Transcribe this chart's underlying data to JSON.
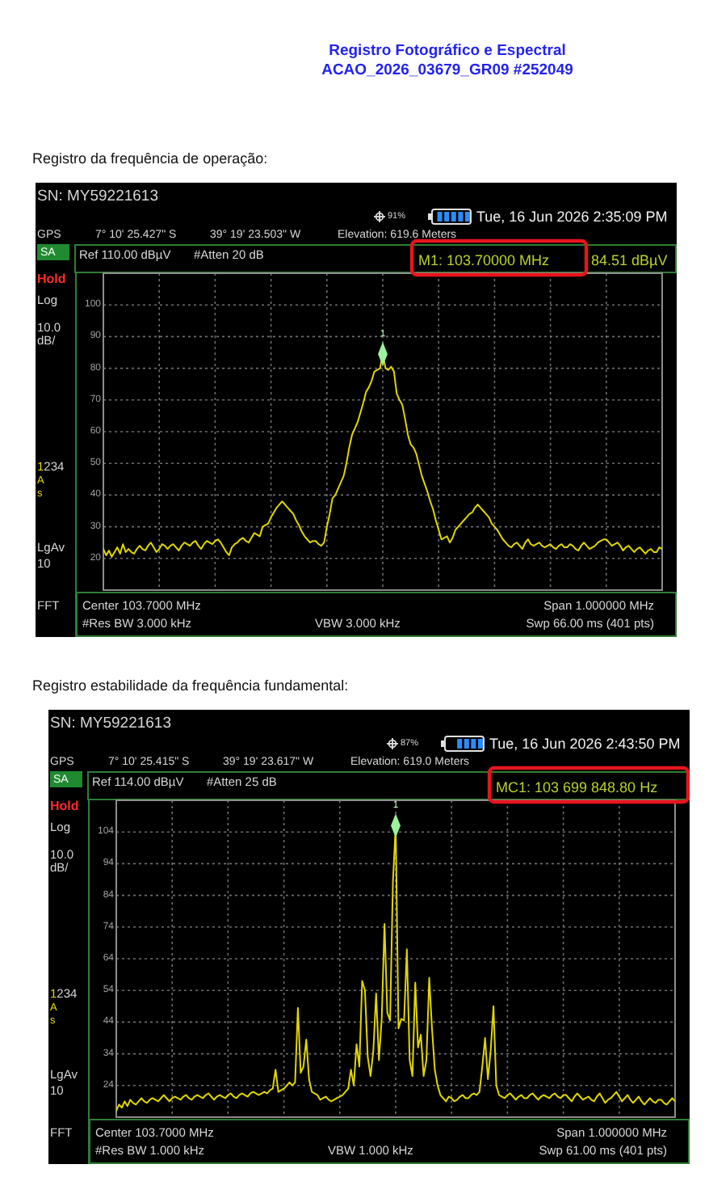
{
  "chart_data": [
    {
      "type": "line",
      "title": "Registro Fotográfico e Espectral",
      "subtitle": "ACAO_2026_03679_GR09 #252049",
      "annotations": [
        "Registro da frequência de operação:",
        "SN: MY59221613",
        "91%",
        "Tue, 16 Jun 2026 2:35:09 PM",
        "GPS",
        "7° 10' 25.427\" S",
        "39° 19' 23.503\" W",
        "Elevation: 619.6 Meters",
        "SA",
        "Ref 110.00 dBµV",
        "#Atten 20 dB",
        "Hold",
        "Log",
        "10.0",
        "dB/",
        "1234",
        "A",
        "s",
        "LgAv",
        "10",
        "FFT",
        "Center 103.7000 MHz",
        "Span 1.000000 MHz",
        "#Res BW 3.000 kHz",
        "VBW 3.000 kHz",
        "Swp 66.00 ms (401 pts)",
        "1",
        "M1: 103.70000 MHz",
        "84.51 dBµV"
      ],
      "categories": [
        null,
        null,
        null,
        null,
        null,
        null,
        null,
        null,
        null,
        null,
        null,
        null,
        null,
        null,
        null,
        null,
        null,
        null,
        null,
        null,
        null,
        null,
        null,
        null,
        null,
        null,
        null,
        null,
        null,
        null,
        null,
        null,
        null,
        null,
        null,
        null,
        null,
        null,
        null,
        null,
        null,
        null,
        null,
        null,
        null,
        null,
        null,
        null,
        null,
        null,
        null,
        null,
        null,
        null,
        null,
        null,
        null,
        null,
        null,
        null,
        null,
        null,
        null,
        null,
        null,
        null,
        null,
        null,
        null,
        null,
        null,
        null,
        null,
        null,
        null,
        null,
        null,
        null,
        null,
        null,
        null,
        null,
        null,
        null,
        null,
        null,
        null,
        null,
        null,
        null,
        null,
        null,
        null,
        null,
        null,
        null,
        null,
        null,
        null,
        null,
        null,
        null,
        null,
        null,
        null,
        null,
        null,
        null,
        null,
        null,
        null,
        null,
        null,
        null,
        null,
        null,
        null,
        null,
        null,
        null,
        null,
        null,
        null,
        null,
        null,
        null,
        null,
        null,
        null,
        null,
        null,
        null,
        null,
        null,
        null,
        null,
        null,
        null,
        null,
        null,
        null,
        null,
        null,
        null,
        null,
        null,
        null,
        null,
        null,
        null,
        null,
        null,
        null,
        null,
        null,
        null,
        null,
        null,
        null,
        null,
        null,
        null,
        null,
        null,
        null,
        null,
        null,
        null,
        null,
        null,
        null,
        null,
        null,
        null,
        null,
        null,
        null,
        null,
        null,
        null,
        null,
        null,
        null,
        null,
        null,
        null,
        null,
        null,
        null,
        null,
        null,
        null,
        null,
        null,
        null,
        null,
        null,
        null,
        null,
        null,
        null
      ],
      "ylim": [
        10,
        110
      ],
      "yticks": [
        20,
        30,
        40,
        50,
        60,
        70,
        80,
        90,
        100
      ],
      "grid": true,
      "tick_labels": "y",
      "series": [
        {
          "color": "#e0d600",
          "values": [
            23,
            21,
            22.5,
            20.5,
            22,
            23.5,
            21.5,
            24.5,
            22,
            23,
            22,
            21.5,
            23,
            24,
            23,
            22.5,
            24,
            25,
            23.5,
            22,
            23,
            24.5,
            24,
            23,
            24,
            24.5,
            23.5,
            22.5,
            24,
            25,
            24.5,
            24,
            25,
            25.5,
            24,
            23,
            24.5,
            25.5,
            25,
            24.5,
            25.5,
            26,
            25,
            23.5,
            22,
            21,
            23.5,
            24.5,
            25,
            26,
            26.5,
            25.5,
            25,
            26.5,
            28,
            27.5,
            27,
            30,
            30.5,
            31,
            33,
            34.5,
            36,
            37,
            38,
            37,
            36,
            35,
            34,
            32,
            30.5,
            28.5,
            27,
            26,
            25,
            25.5,
            25.5,
            24.5,
            24,
            25,
            30,
            34,
            39,
            40,
            42,
            44,
            46,
            50,
            55,
            59,
            61,
            63,
            66,
            69,
            72.5,
            74,
            76,
            79,
            79.5,
            80,
            84.5,
            80,
            79.5,
            80.5,
            79,
            72,
            70,
            68.5,
            64,
            59,
            56,
            55,
            53,
            49.5,
            46,
            43.5,
            41,
            38,
            35.5,
            32,
            29,
            26,
            26.5,
            27,
            25,
            26.5,
            29,
            30,
            31,
            32,
            33,
            34,
            34.5,
            36,
            37,
            36,
            35,
            34,
            33,
            31,
            30,
            29,
            27.5,
            26,
            25,
            24,
            23.5,
            24.5,
            25,
            24,
            23,
            25,
            26,
            24.5,
            24,
            24.5,
            25,
            24,
            23.5,
            24,
            24.5,
            23.5,
            23,
            24,
            24.5,
            23.5,
            23.5,
            24.5,
            24,
            23,
            22.5,
            24,
            25,
            24,
            23,
            23.5,
            24,
            25,
            25.5,
            26,
            26,
            25,
            24,
            24.5,
            25,
            24,
            22.5,
            23.5,
            24,
            23,
            22,
            23,
            23.5,
            22.5,
            21.5,
            22.5,
            23,
            22,
            22,
            23.5,
            23
          ]
        },
        {
          "type": "scatter",
          "color": "#9cf29c",
          "marker": "diamond",
          "values": [
            null,
            null,
            null,
            null,
            null,
            null,
            null,
            null,
            null,
            null,
            null,
            null,
            null,
            null,
            null,
            null,
            null,
            null,
            null,
            null,
            null,
            null,
            null,
            null,
            null,
            null,
            null,
            null,
            null,
            null,
            null,
            null,
            null,
            null,
            null,
            null,
            null,
            null,
            null,
            null,
            null,
            null,
            null,
            null,
            null,
            null,
            null,
            null,
            null,
            null,
            null,
            null,
            null,
            null,
            null,
            null,
            null,
            null,
            null,
            null,
            null,
            null,
            null,
            null,
            null,
            null,
            null,
            null,
            null,
            null,
            null,
            null,
            null,
            null,
            null,
            null,
            null,
            null,
            null,
            null,
            null,
            null,
            null,
            null,
            null,
            null,
            null,
            null,
            null,
            null,
            null,
            null,
            null,
            null,
            null,
            null,
            null,
            null,
            null,
            null,
            84.51,
            null,
            null,
            null,
            null,
            null,
            null,
            null,
            null,
            null,
            null,
            null,
            null,
            null,
            null,
            null,
            null,
            null,
            null,
            null,
            null,
            null,
            null,
            null,
            null,
            null,
            null,
            null,
            null,
            null,
            null,
            null,
            null,
            null,
            null,
            null,
            null,
            null,
            null,
            null,
            null,
            null,
            null,
            null,
            null,
            null,
            null,
            null,
            null,
            null,
            null,
            null,
            null,
            null,
            null,
            null,
            null,
            null,
            null,
            null,
            null,
            null,
            null,
            null,
            null,
            null,
            null,
            null,
            null,
            null,
            null,
            null,
            null,
            null,
            null,
            null,
            null,
            null,
            null,
            null,
            null,
            null,
            null,
            null,
            null,
            null,
            null,
            null,
            null,
            null,
            null,
            null,
            null,
            null,
            null,
            null,
            null,
            null,
            null,
            null,
            null
          ]
        }
      ]
    },
    {
      "type": "line",
      "annotations": [
        "Registro estabilidade da frequência fundamental:",
        "SN: MY59221613",
        "87%",
        "Tue, 16 Jun 2026 2:43:50 PM",
        "GPS",
        "7° 10' 25.415\" S",
        "39° 19' 23.617\" W",
        "Elevation: 619.0 Meters",
        "SA",
        "Ref 114.00 dBµV",
        "#Atten 25 dB",
        "Hold",
        "Log",
        "10.0",
        "dB/",
        "1234",
        "A",
        "s",
        "LgAv",
        "10",
        "FFT",
        "Center 103.7000 MHz",
        "Span 1.000000 MHz",
        "#Res BW 1.000 kHz",
        "VBW 1.000 kHz",
        "Swp 61.00 ms (401 pts)",
        "1",
        "MC1: 103 699 848.80 Hz"
      ],
      "categories": [
        null,
        null,
        null,
        null,
        null,
        null,
        null,
        null,
        null,
        null,
        null,
        null,
        null,
        null,
        null,
        null,
        null,
        null,
        null,
        null,
        null,
        null,
        null,
        null,
        null,
        null,
        null,
        null,
        null,
        null,
        null,
        null,
        null,
        null,
        null,
        null,
        null,
        null,
        null,
        null,
        null,
        null,
        null,
        null,
        null,
        null,
        null,
        null,
        null,
        null,
        null,
        null,
        null,
        null,
        null,
        null,
        null,
        null,
        null,
        null,
        null,
        null,
        null,
        null,
        null,
        null,
        null,
        null,
        null,
        null,
        null,
        null,
        null,
        null,
        null,
        null,
        null,
        null,
        null,
        null,
        null,
        null,
        null,
        null,
        null,
        null,
        null,
        null,
        null,
        null,
        null,
        null,
        null,
        null,
        null,
        null,
        null,
        null,
        null,
        null,
        null,
        null,
        null,
        null,
        null,
        null,
        null,
        null,
        null,
        null,
        null,
        null,
        null,
        null,
        null,
        null,
        null,
        null,
        null,
        null,
        null,
        null,
        null,
        null,
        null,
        null,
        null,
        null,
        null,
        null,
        null,
        null,
        null,
        null,
        null,
        null,
        null,
        null,
        null,
        null,
        null,
        null,
        null,
        null,
        null,
        null,
        null,
        null,
        null,
        null,
        null,
        null,
        null,
        null,
        null,
        null,
        null,
        null,
        null,
        null,
        null,
        null,
        null,
        null,
        null,
        null,
        null,
        null,
        null,
        null,
        null,
        null,
        null,
        null,
        null,
        null,
        null,
        null,
        null,
        null,
        null,
        null,
        null,
        null,
        null,
        null,
        null,
        null,
        null,
        null,
        null,
        null,
        null,
        null,
        null,
        null,
        null,
        null,
        null,
        null,
        null
      ],
      "ylim": [
        14,
        114
      ],
      "yticks": [
        24,
        34,
        44,
        54,
        64,
        74,
        84,
        94,
        104
      ],
      "grid": true,
      "tick_labels": "y",
      "series": [
        {
          "color": "#e0d600",
          "values": [
            16,
            18,
            17,
            19,
            17.5,
            19.5,
            18.5,
            18,
            19,
            20,
            19,
            18.5,
            19.5,
            20,
            19.5,
            19,
            20,
            21,
            20,
            19,
            20,
            20.5,
            20,
            19.5,
            20.5,
            21,
            20,
            19.5,
            20.5,
            21,
            20.5,
            20,
            21,
            21.5,
            20.5,
            19.5,
            20.5,
            21,
            20.5,
            20,
            21,
            21.5,
            20.5,
            20,
            21,
            21.5,
            21,
            20.5,
            21.5,
            22,
            21.5,
            21,
            21.5,
            22,
            21.5,
            22.5,
            23,
            29,
            22,
            22.5,
            23,
            24,
            25,
            24,
            25,
            48.5,
            28,
            30,
            38.5,
            26,
            22,
            21.5,
            21,
            19.5,
            20,
            20.5,
            19.5,
            19,
            19.5,
            20,
            20.5,
            21,
            22,
            23,
            29,
            24,
            37,
            30,
            57,
            54,
            33,
            27,
            35,
            53,
            32,
            45,
            75,
            47,
            44.5,
            88,
            106,
            42,
            45,
            44.5,
            67,
            32,
            27,
            56.5,
            36,
            40,
            27,
            32,
            58,
            42,
            29,
            24,
            21,
            20,
            19,
            20.5,
            20,
            19,
            19.5,
            20.5,
            21,
            20,
            20,
            21,
            21.5,
            21,
            22,
            30,
            39,
            26,
            35,
            49,
            24,
            21,
            20.5,
            20,
            21,
            21.5,
            20.5,
            19.5,
            20.5,
            21,
            20,
            20,
            21,
            21.5,
            20.5,
            19.5,
            20.5,
            21,
            20.5,
            20,
            21,
            21.5,
            20.5,
            20,
            21,
            21,
            20,
            19,
            20.5,
            21.5,
            20.5,
            19.5,
            20,
            20.5,
            19.5,
            19,
            20.5,
            21.5,
            20,
            18.5,
            19.5,
            20,
            21,
            22,
            20.5,
            19,
            20,
            21,
            19.5,
            18.5,
            19.5,
            20.5,
            19,
            18,
            19,
            20,
            19,
            18.5,
            19.5,
            19.5,
            18.5,
            18,
            19,
            20,
            19
          ]
        },
        {
          "type": "scatter",
          "color": "#9cf29c",
          "marker": "diamond",
          "values": [
            null,
            null,
            null,
            null,
            null,
            null,
            null,
            null,
            null,
            null,
            null,
            null,
            null,
            null,
            null,
            null,
            null,
            null,
            null,
            null,
            null,
            null,
            null,
            null,
            null,
            null,
            null,
            null,
            null,
            null,
            null,
            null,
            null,
            null,
            null,
            null,
            null,
            null,
            null,
            null,
            null,
            null,
            null,
            null,
            null,
            null,
            null,
            null,
            null,
            null,
            null,
            null,
            null,
            null,
            null,
            null,
            null,
            null,
            null,
            null,
            null,
            null,
            null,
            null,
            null,
            null,
            null,
            null,
            null,
            null,
            null,
            null,
            null,
            null,
            null,
            null,
            null,
            null,
            null,
            null,
            null,
            null,
            null,
            null,
            null,
            null,
            null,
            null,
            null,
            null,
            null,
            null,
            null,
            null,
            null,
            null,
            null,
            null,
            null,
            null,
            106,
            null,
            null,
            null,
            null,
            null,
            null,
            null,
            null,
            null,
            null,
            null,
            null,
            null,
            null,
            null,
            null,
            null,
            null,
            null,
            null,
            null,
            null,
            null,
            null,
            null,
            null,
            null,
            null,
            null,
            null,
            null,
            null,
            null,
            null,
            null,
            null,
            null,
            null,
            null,
            null,
            null,
            null,
            null,
            null,
            null,
            null,
            null,
            null,
            null,
            null,
            null,
            null,
            null,
            null,
            null,
            null,
            null,
            null,
            null,
            null,
            null,
            null,
            null,
            null,
            null,
            null,
            null,
            null,
            null,
            null,
            null,
            null,
            null,
            null,
            null,
            null,
            null,
            null,
            null,
            null,
            null,
            null,
            null,
            null,
            null,
            null,
            null,
            null,
            null,
            null,
            null,
            null,
            null,
            null,
            null,
            null,
            null,
            null,
            null,
            null
          ]
        }
      ]
    }
  ]
}
